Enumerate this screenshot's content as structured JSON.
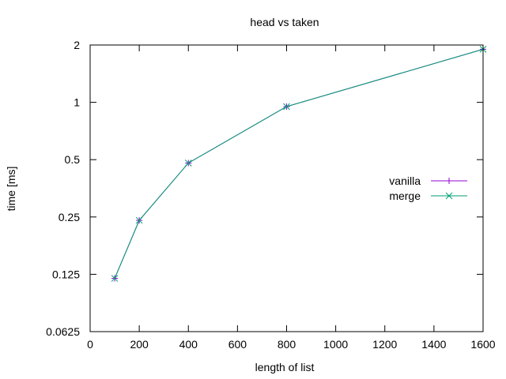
{
  "chart_data": {
    "type": "line",
    "title": "head vs taken",
    "xlabel": "length of list",
    "ylabel": "time [ms]",
    "xlim": [
      0,
      1600
    ],
    "ylim": [
      0.0625,
      2
    ],
    "yscale": "log2",
    "grid": false,
    "legend_position": "right",
    "x_ticks": [
      0,
      200,
      400,
      600,
      800,
      1000,
      1200,
      1400,
      1600
    ],
    "x_tick_labels": [
      "0",
      "200",
      "400",
      "600",
      "800",
      "1000",
      "1200",
      "1400",
      "1600"
    ],
    "y_ticks": [
      0.0625,
      0.125,
      0.25,
      0.5,
      1,
      2
    ],
    "y_tick_labels": [
      "0.0625",
      "0.125",
      "0.25",
      "0.5",
      "1",
      "2"
    ],
    "x": [
      100,
      200,
      400,
      800,
      1600
    ],
    "series": [
      {
        "name": "vanilla",
        "color": "#9400d3",
        "marker": "plus",
        "values": [
          0.119,
          0.24,
          0.48,
          0.95,
          1.9
        ]
      },
      {
        "name": "merge",
        "color": "#009e73",
        "marker": "cross",
        "values": [
          0.119,
          0.24,
          0.48,
          0.95,
          1.9
        ]
      }
    ]
  }
}
